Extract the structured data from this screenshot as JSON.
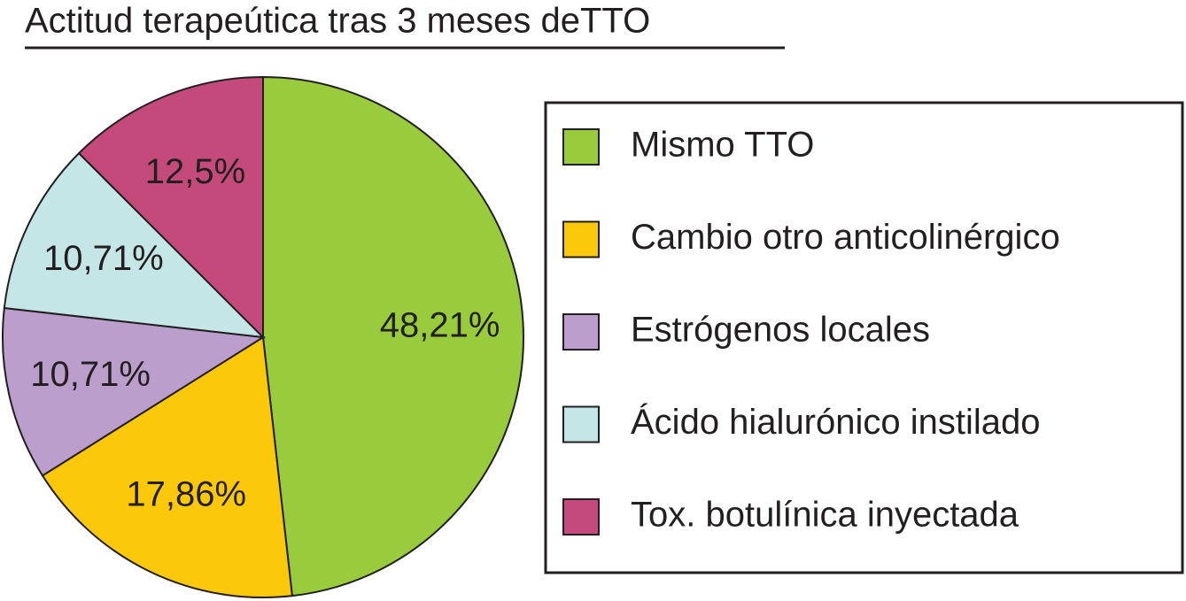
{
  "chart_data": {
    "type": "pie",
    "title": "Actitud terapeútica tras 3 meses deTTO",
    "categories": [
      "Mismo TTO",
      "Cambio otro anticolinérgico",
      "Estrógenos locales",
      "Ácido hialurónico instilado",
      "Tox. botulínica inyectada"
    ],
    "values": [
      48.21,
      17.86,
      10.71,
      10.71,
      12.5
    ],
    "value_labels": [
      "48,21%",
      "17,86%",
      "10,71%",
      "10,71%",
      "12,5%"
    ],
    "colors": [
      "#99cc3d",
      "#fcc80a",
      "#bb9ecb",
      "#c5e6e7",
      "#c44a7b"
    ],
    "legend": "right"
  }
}
